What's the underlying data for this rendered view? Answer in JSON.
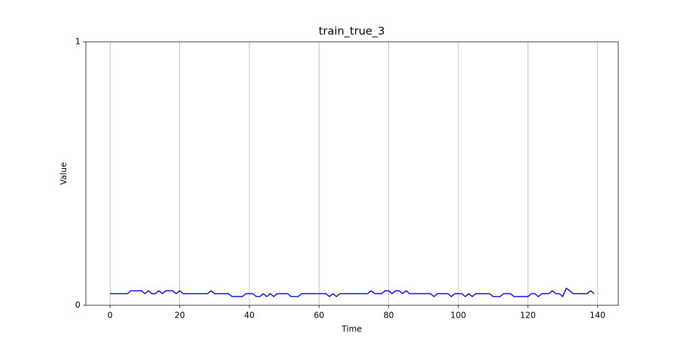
{
  "chart_data": {
    "type": "line",
    "title": "train_true_3",
    "x_label": "Time",
    "y_label": "Value",
    "x": [
      0,
      1,
      2,
      3,
      4,
      5,
      6,
      7,
      8,
      9,
      10,
      11,
      12,
      13,
      14,
      15,
      16,
      17,
      18,
      19,
      20,
      21,
      22,
      23,
      24,
      25,
      26,
      27,
      28,
      29,
      30,
      31,
      32,
      33,
      34,
      35,
      36,
      37,
      38,
      39,
      40,
      41,
      42,
      43,
      44,
      45,
      46,
      47,
      48,
      49,
      50,
      51,
      52,
      53,
      54,
      55,
      56,
      57,
      58,
      59,
      60,
      61,
      62,
      63,
      64,
      65,
      66,
      67,
      68,
      69,
      70,
      71,
      72,
      73,
      74,
      75,
      76,
      77,
      78,
      79,
      80,
      81,
      82,
      83,
      84,
      85,
      86,
      87,
      88,
      89,
      90,
      91,
      92,
      93,
      94,
      95,
      96,
      97,
      98,
      99,
      100,
      101,
      102,
      103,
      104,
      105,
      106,
      107,
      108,
      109,
      110,
      111,
      112,
      113,
      114,
      115,
      116,
      117,
      118,
      119,
      120,
      121,
      122,
      123,
      124,
      125,
      126,
      127,
      128,
      129,
      130,
      131,
      132,
      133,
      134,
      135,
      136,
      137,
      138,
      139
    ],
    "values": [
      0.044,
      0.044,
      0.044,
      0.044,
      0.044,
      0.044,
      0.055,
      0.055,
      0.055,
      0.055,
      0.044,
      0.055,
      0.044,
      0.044,
      0.055,
      0.044,
      0.055,
      0.055,
      0.055,
      0.044,
      0.055,
      0.044,
      0.044,
      0.044,
      0.044,
      0.044,
      0.044,
      0.044,
      0.044,
      0.055,
      0.044,
      0.044,
      0.044,
      0.044,
      0.044,
      0.033,
      0.033,
      0.033,
      0.033,
      0.044,
      0.044,
      0.044,
      0.033,
      0.033,
      0.044,
      0.033,
      0.044,
      0.033,
      0.044,
      0.044,
      0.044,
      0.044,
      0.033,
      0.033,
      0.033,
      0.044,
      0.044,
      0.044,
      0.044,
      0.044,
      0.044,
      0.044,
      0.044,
      0.033,
      0.044,
      0.033,
      0.044,
      0.044,
      0.044,
      0.044,
      0.044,
      0.044,
      0.044,
      0.044,
      0.044,
      0.055,
      0.044,
      0.044,
      0.044,
      0.055,
      0.055,
      0.044,
      0.055,
      0.055,
      0.044,
      0.055,
      0.044,
      0.044,
      0.044,
      0.044,
      0.044,
      0.044,
      0.044,
      0.033,
      0.044,
      0.044,
      0.044,
      0.044,
      0.033,
      0.044,
      0.044,
      0.044,
      0.033,
      0.044,
      0.033,
      0.044,
      0.044,
      0.044,
      0.044,
      0.044,
      0.033,
      0.033,
      0.033,
      0.044,
      0.044,
      0.044,
      0.033,
      0.033,
      0.033,
      0.033,
      0.033,
      0.044,
      0.044,
      0.033,
      0.044,
      0.044,
      0.044,
      0.055,
      0.044,
      0.044,
      0.033,
      0.065,
      0.055,
      0.044,
      0.044,
      0.044,
      0.044,
      0.044,
      0.055,
      0.044
    ],
    "color": "#0000ff",
    "xlim": [
      -6.95,
      145.95
    ],
    "ylim": [
      0,
      1
    ],
    "xticks": [
      0,
      20,
      40,
      60,
      80,
      100,
      120,
      140
    ],
    "yticks": [
      0,
      1
    ],
    "grid": "x"
  }
}
